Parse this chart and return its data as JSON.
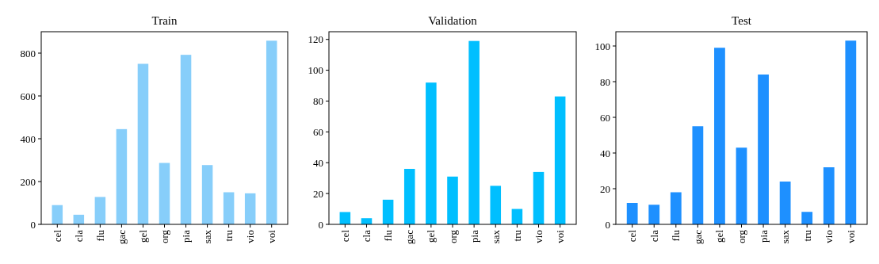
{
  "chart_data": [
    {
      "type": "bar",
      "title": "Train",
      "categories": [
        "cel",
        "cla",
        "flu",
        "gac",
        "gel",
        "org",
        "pia",
        "sax",
        "tru",
        "vio",
        "voi"
      ],
      "values": [
        90,
        45,
        128,
        445,
        750,
        287,
        792,
        277,
        150,
        145,
        858
      ],
      "color": "#87cefa",
      "ylim": [
        0,
        900
      ],
      "yticks": [
        0,
        200,
        400,
        600,
        800
      ]
    },
    {
      "type": "bar",
      "title": "Validation",
      "categories": [
        "cel",
        "cla",
        "flu",
        "gac",
        "gel",
        "org",
        "pia",
        "sax",
        "tru",
        "vio",
        "voi"
      ],
      "values": [
        8,
        4,
        16,
        36,
        92,
        31,
        119,
        25,
        10,
        34,
        83
      ],
      "color": "#00bfff",
      "ylim": [
        0,
        125
      ],
      "yticks": [
        0,
        20,
        40,
        60,
        80,
        100,
        120
      ]
    },
    {
      "type": "bar",
      "title": "Test",
      "categories": [
        "cel",
        "cla",
        "flu",
        "gac",
        "gel",
        "org",
        "pia",
        "sax",
        "tru",
        "vio",
        "voi"
      ],
      "values": [
        12,
        11,
        18,
        55,
        99,
        43,
        84,
        24,
        7,
        32,
        103
      ],
      "color": "#1e90ff",
      "ylim": [
        0,
        108
      ],
      "yticks": [
        0,
        20,
        40,
        60,
        80,
        100
      ]
    }
  ]
}
